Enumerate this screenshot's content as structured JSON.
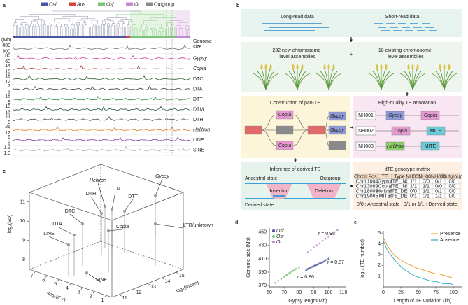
{
  "figure": {
    "panel_labels": [
      "a",
      "b",
      "c",
      "d",
      "e"
    ],
    "a": {
      "legend": [
        {
          "name": "Osi",
          "color": "#4a55a2"
        },
        {
          "name": "Aus",
          "color": "#d9453d"
        },
        {
          "name": "Osj",
          "color": "#7cc47a"
        },
        {
          "name": "Or",
          "color": "#c08bd0"
        },
        {
          "name": "Outgroup",
          "color": "#8c8c8c"
        }
      ],
      "unit": "(Mb)",
      "tracks": [
        {
          "name": [
            "Genome",
            "size"
          ],
          "ticks": [
            400,
            300
          ],
          "color": "#6e6e6e"
        },
        {
          "name": [
            "Gypsy"
          ],
          "ticks": [
            80,
            60
          ],
          "color": "#c8389a"
        },
        {
          "name": [
            "Copia"
          ],
          "ticks": [
            14,
            10
          ],
          "color": "#a0282a"
        },
        {
          "name": [
            "DTC"
          ],
          "ticks": [
            18,
            12
          ],
          "color": "#2e5e36"
        },
        {
          "name": [
            "DTA"
          ],
          "ticks": [
            7,
            3
          ],
          "color": "#3c3c3c"
        },
        {
          "name": [
            "DTT"
          ],
          "ticks": [
            18,
            9
          ],
          "color": "#2f8a3a"
        },
        {
          "name": [
            "DTM"
          ],
          "ticks": [
            18,
            13
          ],
          "color": "#25574f"
        },
        {
          "name": [
            "DTH"
          ],
          "ticks": [
            11,
            8
          ],
          "color": "#4a4a4a"
        },
        {
          "name": [
            "Helitron"
          ],
          "ticks": [
            26,
            12
          ],
          "color": "#e07b22"
        },
        {
          "name": [
            "LINE"
          ],
          "ticks": [
            6,
            3
          ],
          "color": "#8a3fa0"
        },
        {
          "name": [
            "SINE"
          ],
          "ticks": [
            1.2,
            {
              "value": 1,
              "label": "1.0"
            }
          ],
          "color": "#aaaaaa"
        }
      ]
    },
    "b": {
      "long_read": "Long-read data",
      "short_read": "Short-read data",
      "new_assemblies": [
        "232 new chromosome-",
        "level assemblies"
      ],
      "plus": "+",
      "existing_assemblies": [
        "18 existing chromosome-",
        "level assemblies"
      ],
      "construction": {
        "title": "Construction of pan-TE",
        "nodes": [
          "Copia",
          "Gypsy",
          "Gypsy",
          "Copia"
        ]
      },
      "annotation": {
        "title": "High-quality TE annotation",
        "rows": [
          {
            "sample": "NH001",
            "tes": [
              "Gypsy",
              "Copia"
            ]
          },
          {
            "sample": "NH002",
            "tes": [
              "Copia",
              "MITE"
            ]
          },
          {
            "sample": "NH003",
            "tes": [
              "Helitron",
              "MITE"
            ]
          }
        ]
      },
      "inference": {
        "title": "Inference of derived TE",
        "ancestral": "Ancestral state",
        "derived": "Derived state",
        "outgroup": "Outgroup",
        "insertion": "Insertion",
        "deletion": "Deletion"
      },
      "matrix": {
        "title": "dTE genotype matrix",
        "header": [
          "Chrom",
          "Pos",
          "TE",
          "Type",
          "NH001",
          "NH002",
          "NH003",
          "Outgroup"
        ],
        "rows": [
          [
            "Chr1",
            1004,
            "Gypsy",
            "dTE_INS",
            "1/1",
            "0/0",
            "0/1",
            "0/0"
          ],
          [
            "Chr1",
            3089,
            "Copia",
            "dTE_INS",
            "1/1",
            "1/1",
            "0/0",
            "0/0"
          ],
          [
            "Chr1",
            8009,
            "Helitron",
            "dTE_DEL",
            "0/0",
            "1/1",
            "0/1",
            "0/0"
          ],
          [
            "Chr1",
            9065,
            "MITE",
            "dTE_DEL",
            "0/1",
            "0/1",
            "1/1",
            "0/0"
          ]
        ],
        "note_ancestral": "0/0 : Ancestral state",
        "note_derived": "0/1 or 1/1 : Derived  state"
      }
    },
    "c": {
      "y_label": "log₂(SD)",
      "cv_label": "-log₂(CV)",
      "mean_label": "log₂(mean)",
      "sd_lim": [
        7.5,
        11.5
      ],
      "sd_ticks": [
        8,
        9,
        10,
        11
      ],
      "cv_lim": [
        7.5,
        0.5
      ],
      "cv_ticks": [
        7,
        6,
        5,
        4,
        3,
        2,
        1
      ],
      "mean_lim": [
        10.5,
        15.5
      ],
      "mean_ticks": [
        11,
        12,
        13,
        14,
        15
      ],
      "points": [
        "Helitron",
        "Gypsy",
        "DTM",
        "DTH",
        "DTT",
        "DTC",
        "Copia",
        "DTA",
        "LINE",
        "LTR/unknown",
        "SINE"
      ]
    }
  },
  "chart_data": [
    {
      "type": "scatter",
      "x_label": "Gypsy length(Mb)",
      "y_label": "Genome size (Mb)",
      "xlim": [
        60,
        112
      ],
      "ylim": [
        368,
        456
      ],
      "xticks": [
        60,
        70,
        80,
        90,
        100,
        110
      ],
      "yticks": [
        370,
        390,
        410,
        430,
        450
      ],
      "series": [
        {
          "name": "Osi",
          "color": "#4a55a2",
          "r_label": "r = 0.87",
          "x": [
            85,
            86,
            87,
            88,
            89,
            90,
            91,
            92,
            93,
            94,
            95,
            96,
            97,
            98,
            100
          ],
          "values": [
            393,
            395,
            396,
            397,
            398,
            399,
            400,
            401,
            402,
            403,
            404,
            405,
            406,
            408,
            410
          ]
        },
        {
          "name": "Osj",
          "color": "#7cc47a",
          "r_label": "r = 0.86",
          "x": [
            64,
            66,
            68,
            70,
            71,
            72,
            73,
            74,
            75,
            76,
            77,
            78,
            80
          ],
          "values": [
            374,
            377,
            380,
            383,
            385,
            386,
            388,
            389,
            391,
            392,
            393,
            395,
            397
          ]
        },
        {
          "name": "Or",
          "color": "#c08bd0",
          "r_label": "r = 0.96",
          "x": [
            86,
            88,
            90,
            92,
            94,
            96,
            98,
            100,
            102,
            104,
            106
          ],
          "values": [
            420,
            423,
            427,
            430,
            433,
            437,
            440,
            443,
            447,
            450,
            453
          ]
        }
      ]
    },
    {
      "type": "line",
      "x_label": "Length of TE variation (kb)",
      "y_label": "log₁₀ (TE number)",
      "xlim": [
        0,
        112
      ],
      "ylim": [
        0,
        5.2
      ],
      "xticks": [
        0,
        25,
        50,
        75,
        100
      ],
      "yticks": [
        1,
        2,
        3,
        4,
        5
      ],
      "x": [
        0,
        5,
        10,
        15,
        20,
        25,
        30,
        35,
        40,
        45,
        50,
        55,
        60,
        65,
        70,
        75,
        80,
        85,
        90,
        95,
        100
      ],
      "series": [
        {
          "name": "Presence",
          "color": "#f0a030",
          "values": [
            4.6,
            3.9,
            3.4,
            3.0,
            2.7,
            2.5,
            2.3,
            2.1,
            2.0,
            1.8,
            1.7,
            1.6,
            1.5,
            1.4,
            1.3,
            1.2,
            1.2,
            1.1,
            1.0,
            0.9,
            0.8
          ]
        },
        {
          "name": "Absence",
          "color": "#30aebf",
          "values": [
            4.3,
            3.5,
            3.0,
            2.6,
            2.2,
            1.9,
            1.6,
            1.4,
            1.2,
            1.0,
            0.9,
            0.8,
            0.7,
            0.6,
            0.5,
            0.5,
            0.4,
            0.3,
            0.3,
            0.3,
            0.2
          ]
        }
      ]
    }
  ]
}
